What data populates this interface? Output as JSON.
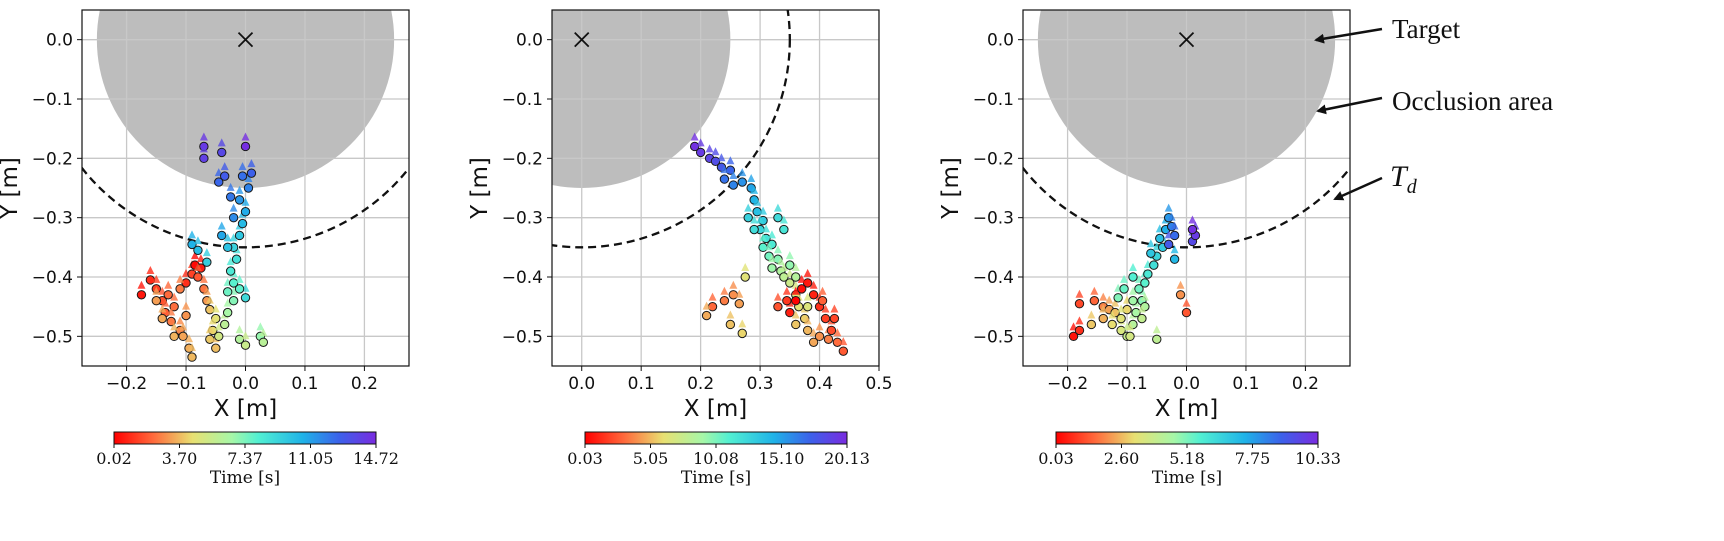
{
  "colors": {
    "occlusion": "#bdbdbd",
    "grid": "#c8c8c8",
    "td_line": "#111111",
    "target_marker": "#111111"
  },
  "annotations": {
    "target": "Target",
    "occlusion": "Occlusion area",
    "td_main": "T",
    "td_sub": "d"
  },
  "chart_data": [
    {
      "type": "scatter",
      "xlabel": "X [m]",
      "ylabel": "Y [m]",
      "xlim": [
        -0.275,
        0.275
      ],
      "ylim": [
        -0.55,
        0.05
      ],
      "xticks": [
        -0.2,
        -0.1,
        0.0,
        0.1,
        0.2
      ],
      "xtick_labels": [
        "−0.2",
        "−0.1",
        "0.0",
        "0.1",
        "0.2"
      ],
      "yticks": [
        0.0,
        -0.1,
        -0.2,
        -0.3,
        -0.4,
        -0.5
      ],
      "ytick_labels": [
        "0.0",
        "−0.1",
        "−0.2",
        "−0.3",
        "−0.4",
        "−0.5"
      ],
      "grid": true,
      "target": [
        0.0,
        0.0
      ],
      "occlusion_radius": 0.25,
      "td_radius": 0.35,
      "colorbar": {
        "label": "Time [s]",
        "min": 0.02,
        "max": 14.72,
        "tick_labels": [
          "0.02",
          "3.70",
          "7.37",
          "11.05",
          "14.72"
        ]
      },
      "points": [
        [
          -0.175,
          -0.43,
          0.5
        ],
        [
          -0.16,
          -0.405,
          0.9
        ],
        [
          -0.15,
          -0.42,
          1.3
        ],
        [
          -0.14,
          -0.44,
          1.7
        ],
        [
          -0.135,
          -0.46,
          2.0
        ],
        [
          -0.12,
          -0.45,
          2.3
        ],
        [
          -0.125,
          -0.475,
          2.5
        ],
        [
          -0.11,
          -0.49,
          2.8
        ],
        [
          -0.1,
          -0.465,
          3.0
        ],
        [
          -0.105,
          -0.5,
          3.3
        ],
        [
          -0.095,
          -0.52,
          3.5
        ],
        [
          -0.09,
          -0.535,
          3.7
        ],
        [
          -0.1,
          -0.41,
          1.0
        ],
        [
          -0.09,
          -0.395,
          1.4
        ],
        [
          -0.085,
          -0.38,
          0.2
        ],
        [
          -0.075,
          -0.385,
          0.6
        ],
        [
          -0.08,
          -0.4,
          1.8
        ],
        [
          -0.07,
          -0.42,
          2.4
        ],
        [
          -0.065,
          -0.44,
          3.1
        ],
        [
          -0.06,
          -0.455,
          3.9
        ],
        [
          -0.05,
          -0.47,
          4.6
        ],
        [
          -0.055,
          -0.49,
          4.3
        ],
        [
          -0.06,
          -0.505,
          4.0
        ],
        [
          -0.05,
          -0.52,
          3.8
        ],
        [
          -0.045,
          -0.5,
          5.2
        ],
        [
          -0.035,
          -0.48,
          5.9
        ],
        [
          -0.03,
          -0.46,
          6.6
        ],
        [
          -0.02,
          -0.44,
          7.2
        ],
        [
          -0.03,
          -0.425,
          7.6
        ],
        [
          -0.02,
          -0.41,
          8.0
        ],
        [
          -0.025,
          -0.39,
          8.4
        ],
        [
          -0.015,
          -0.37,
          8.8
        ],
        [
          -0.02,
          -0.35,
          9.3
        ],
        [
          -0.01,
          -0.33,
          9.8
        ],
        [
          -0.005,
          -0.31,
          10.3
        ],
        [
          0.0,
          -0.29,
          10.8
        ],
        [
          -0.01,
          -0.27,
          11.3
        ],
        [
          0.005,
          -0.25,
          11.8
        ],
        [
          -0.005,
          -0.23,
          12.3
        ],
        [
          0.01,
          -0.225,
          12.7
        ],
        [
          -0.04,
          -0.19,
          13.6
        ],
        [
          -0.07,
          -0.18,
          14.2
        ],
        [
          0.0,
          -0.18,
          14.6
        ],
        [
          -0.07,
          -0.2,
          13.9
        ],
        [
          -0.045,
          -0.24,
          12.5
        ],
        [
          -0.035,
          -0.23,
          12.9
        ],
        [
          -0.09,
          -0.345,
          10.6
        ],
        [
          -0.08,
          -0.355,
          10.2
        ],
        [
          -0.065,
          -0.375,
          9.5
        ],
        [
          -0.01,
          -0.505,
          6.2
        ],
        [
          0.0,
          -0.515,
          5.5
        ],
        [
          0.025,
          -0.5,
          6.9
        ],
        [
          0.03,
          -0.51,
          6.0
        ],
        [
          0.0,
          -0.435,
          9.0
        ],
        [
          -0.01,
          -0.42,
          7.9
        ],
        [
          -0.13,
          -0.43,
          2.2
        ],
        [
          -0.11,
          -0.42,
          2.6
        ],
        [
          -0.15,
          -0.44,
          3.2
        ],
        [
          -0.14,
          -0.47,
          3.4
        ],
        [
          -0.12,
          -0.5,
          3.6
        ],
        [
          -0.04,
          -0.33,
          10.9
        ],
        [
          -0.03,
          -0.35,
          10.0
        ],
        [
          -0.02,
          -0.3,
          11.6
        ],
        [
          -0.025,
          -0.265,
          12.1
        ]
      ]
    },
    {
      "type": "scatter",
      "xlabel": "X [m]",
      "ylabel": "Y [m]",
      "xlim": [
        -0.05,
        0.5
      ],
      "ylim": [
        -0.55,
        0.05
      ],
      "xticks": [
        0.0,
        0.1,
        0.2,
        0.3,
        0.4,
        0.5
      ],
      "xtick_labels": [
        "0.0",
        "0.1",
        "0.2",
        "0.3",
        "0.4",
        "0.5"
      ],
      "yticks": [
        0.0,
        -0.1,
        -0.2,
        -0.3,
        -0.4,
        -0.5
      ],
      "ytick_labels": [
        "0.0",
        "−0.1",
        "−0.2",
        "−0.3",
        "−0.4",
        "−0.5"
      ],
      "grid": true,
      "target": [
        0.0,
        0.0
      ],
      "occlusion_radius": 0.25,
      "td_radius": 0.35,
      "colorbar": {
        "label": "Time [s]",
        "min": 0.03,
        "max": 20.13,
        "tick_labels": [
          "0.03",
          "5.05",
          "10.08",
          "15.10",
          "20.13"
        ]
      },
      "points": [
        [
          0.19,
          -0.18,
          19.8
        ],
        [
          0.2,
          -0.19,
          19.3
        ],
        [
          0.215,
          -0.2,
          18.8
        ],
        [
          0.225,
          -0.205,
          18.3
        ],
        [
          0.235,
          -0.215,
          17.8
        ],
        [
          0.25,
          -0.22,
          17.2
        ],
        [
          0.24,
          -0.235,
          16.7
        ],
        [
          0.255,
          -0.245,
          16.1
        ],
        [
          0.27,
          -0.24,
          15.6
        ],
        [
          0.285,
          -0.25,
          15.0
        ],
        [
          0.29,
          -0.27,
          14.4
        ],
        [
          0.295,
          -0.29,
          13.8
        ],
        [
          0.305,
          -0.305,
          13.2
        ],
        [
          0.3,
          -0.32,
          12.6
        ],
        [
          0.31,
          -0.335,
          12.0
        ],
        [
          0.32,
          -0.345,
          11.4
        ],
        [
          0.305,
          -0.35,
          10.9
        ],
        [
          0.315,
          -0.365,
          10.3
        ],
        [
          0.33,
          -0.37,
          9.8
        ],
        [
          0.32,
          -0.385,
          9.2
        ],
        [
          0.335,
          -0.39,
          8.6
        ],
        [
          0.34,
          -0.4,
          8.0
        ],
        [
          0.35,
          -0.41,
          7.4
        ],
        [
          0.36,
          -0.43,
          6.8
        ],
        [
          0.365,
          -0.45,
          6.2
        ],
        [
          0.375,
          -0.47,
          5.6
        ],
        [
          0.38,
          -0.49,
          5.0
        ],
        [
          0.39,
          -0.51,
          4.6
        ],
        [
          0.4,
          -0.5,
          4.1
        ],
        [
          0.415,
          -0.505,
          3.6
        ],
        [
          0.43,
          -0.51,
          3.1
        ],
        [
          0.44,
          -0.525,
          2.6
        ],
        [
          0.42,
          -0.49,
          2.2
        ],
        [
          0.41,
          -0.47,
          1.8
        ],
        [
          0.4,
          -0.45,
          1.4
        ],
        [
          0.39,
          -0.43,
          1.0
        ],
        [
          0.38,
          -0.41,
          0.7
        ],
        [
          0.37,
          -0.42,
          0.4
        ],
        [
          0.36,
          -0.44,
          0.1
        ],
        [
          0.35,
          -0.46,
          0.9
        ],
        [
          0.345,
          -0.44,
          1.6
        ],
        [
          0.33,
          -0.45,
          2.4
        ],
        [
          0.22,
          -0.45,
          3.0
        ],
        [
          0.24,
          -0.44,
          3.5
        ],
        [
          0.255,
          -0.43,
          4.0
        ],
        [
          0.265,
          -0.445,
          4.4
        ],
        [
          0.21,
          -0.465,
          4.7
        ],
        [
          0.25,
          -0.48,
          5.3
        ],
        [
          0.27,
          -0.495,
          5.8
        ],
        [
          0.275,
          -0.4,
          6.4
        ],
        [
          0.33,
          -0.3,
          12.3
        ],
        [
          0.34,
          -0.32,
          11.7
        ],
        [
          0.28,
          -0.3,
          12.8
        ],
        [
          0.29,
          -0.32,
          12.2
        ],
        [
          0.35,
          -0.38,
          9.5
        ],
        [
          0.36,
          -0.4,
          8.4
        ],
        [
          0.38,
          -0.45,
          6.6
        ],
        [
          0.405,
          -0.44,
          2.8
        ],
        [
          0.425,
          -0.47,
          2.0
        ],
        [
          0.36,
          -0.48,
          5.4
        ]
      ]
    },
    {
      "type": "scatter",
      "xlabel": "X [m]",
      "ylabel": "Y [m]",
      "xlim": [
        -0.275,
        0.275
      ],
      "ylim": [
        -0.55,
        0.05
      ],
      "xticks": [
        -0.2,
        -0.1,
        0.0,
        0.1,
        0.2
      ],
      "xtick_labels": [
        "−0.2",
        "−0.1",
        "0.0",
        "0.1",
        "0.2"
      ],
      "yticks": [
        0.0,
        -0.1,
        -0.2,
        -0.3,
        -0.4,
        -0.5
      ],
      "ytick_labels": [
        "0.0",
        "−0.1",
        "−0.2",
        "−0.3",
        "−0.4",
        "−0.5"
      ],
      "grid": true,
      "target": [
        0.0,
        0.0
      ],
      "occlusion_radius": 0.25,
      "td_radius": 0.35,
      "colorbar": {
        "label": "Time [s]",
        "min": 0.03,
        "max": 10.33,
        "tick_labels": [
          "0.03",
          "2.60",
          "5.18",
          "7.75",
          "10.33"
        ]
      },
      "points": [
        [
          -0.19,
          -0.5,
          0.3
        ],
        [
          -0.18,
          -0.49,
          0.7
        ],
        [
          -0.18,
          -0.445,
          1.1
        ],
        [
          -0.155,
          -0.44,
          1.5
        ],
        [
          -0.14,
          -0.45,
          1.9
        ],
        [
          -0.13,
          -0.455,
          2.3
        ],
        [
          -0.12,
          -0.46,
          2.7
        ],
        [
          -0.125,
          -0.48,
          3.1
        ],
        [
          -0.11,
          -0.49,
          3.5
        ],
        [
          -0.1,
          -0.5,
          3.9
        ],
        [
          -0.09,
          -0.48,
          4.3
        ],
        [
          -0.085,
          -0.46,
          4.6
        ],
        [
          -0.075,
          -0.44,
          5.0
        ],
        [
          -0.08,
          -0.42,
          5.3
        ],
        [
          -0.07,
          -0.41,
          5.6
        ],
        [
          -0.065,
          -0.395,
          5.9
        ],
        [
          -0.055,
          -0.38,
          6.2
        ],
        [
          -0.05,
          -0.365,
          6.5
        ],
        [
          -0.04,
          -0.35,
          6.8
        ],
        [
          -0.045,
          -0.335,
          7.1
        ],
        [
          -0.035,
          -0.32,
          7.5
        ],
        [
          -0.03,
          -0.3,
          7.9
        ],
        [
          -0.025,
          -0.315,
          8.3
        ],
        [
          -0.02,
          -0.33,
          8.7
        ],
        [
          -0.03,
          -0.345,
          9.1
        ],
        [
          0.01,
          -0.34,
          9.5
        ],
        [
          0.015,
          -0.33,
          9.9
        ],
        [
          0.01,
          -0.32,
          10.2
        ],
        [
          -0.05,
          -0.505,
          4.1
        ],
        [
          -0.1,
          -0.455,
          3.0
        ],
        [
          -0.11,
          -0.47,
          3.3
        ],
        [
          -0.115,
          -0.435,
          5.1
        ],
        [
          -0.105,
          -0.42,
          5.4
        ],
        [
          -0.09,
          -0.4,
          5.7
        ],
        [
          -0.06,
          -0.36,
          6.9
        ],
        [
          0.0,
          -0.46,
          1.3
        ],
        [
          -0.01,
          -0.43,
          2.1
        ],
        [
          -0.09,
          -0.44,
          4.7
        ],
        [
          -0.07,
          -0.45,
          4.4
        ],
        [
          -0.02,
          -0.37,
          7.3
        ],
        [
          -0.075,
          -0.47,
          4.0
        ],
        [
          -0.095,
          -0.5,
          3.6
        ],
        [
          -0.16,
          -0.48,
          2.8
        ],
        [
          -0.14,
          -0.47,
          2.5
        ]
      ]
    }
  ]
}
